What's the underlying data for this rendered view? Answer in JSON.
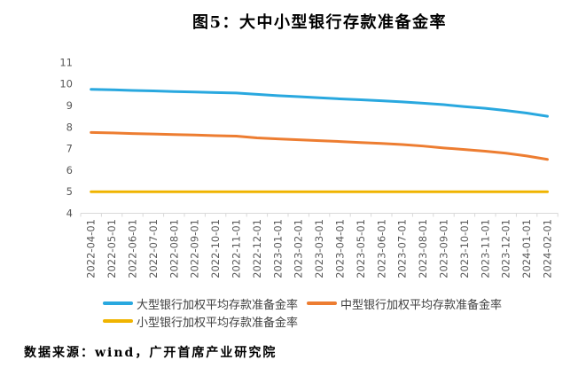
{
  "source": "数据来源：wind，广开首席产业研究院",
  "chart_data": {
    "type": "line",
    "title": "图5：大中小型银行存款准备金率",
    "xlabel": "",
    "ylabel": "",
    "ylim": [
      4,
      11
    ],
    "yticks": [
      11,
      10,
      9,
      8,
      7,
      6,
      5,
      4
    ],
    "grid": false,
    "legend_position": "bottom",
    "axis_color": "#d9d9d9",
    "tick_label_color": "#595959",
    "categories": [
      "2022-04-01",
      "2022-05-01",
      "2022-06-01",
      "2022-07-01",
      "2022-08-01",
      "2022-09-01",
      "2022-10-01",
      "2022-11-01",
      "2022-12-01",
      "2023-01-01",
      "2023-02-01",
      "2023-03-01",
      "2023-04-01",
      "2023-05-01",
      "2023-06-01",
      "2023-07-01",
      "2023-08-01",
      "2023-09-01",
      "2023-10-01",
      "2023-11-01",
      "2023-12-01",
      "2024-01-01",
      "2024-02-01"
    ],
    "series": [
      {
        "id": "large-banks",
        "name": "大型银行加权平均存款准备金率",
        "color": "#29A8DF",
        "values": [
          9.75,
          9.73,
          9.7,
          9.68,
          9.65,
          9.63,
          9.6,
          9.58,
          9.52,
          9.46,
          9.41,
          9.36,
          9.31,
          9.27,
          9.22,
          9.17,
          9.11,
          9.04,
          8.95,
          8.87,
          8.77,
          8.65,
          8.5
        ]
      },
      {
        "id": "medium-banks",
        "name": "中型银行加权平均存款准备金率",
        "color": "#ED7D31",
        "values": [
          7.75,
          7.73,
          7.7,
          7.68,
          7.65,
          7.63,
          7.6,
          7.58,
          7.5,
          7.45,
          7.41,
          7.37,
          7.33,
          7.28,
          7.24,
          7.19,
          7.12,
          7.03,
          6.96,
          6.88,
          6.79,
          6.66,
          6.5
        ]
      },
      {
        "id": "small-banks",
        "name": "小型银行加权平均存款准备金率",
        "color": "#F0B400",
        "values": [
          5.0,
          5.0,
          5.0,
          5.0,
          5.0,
          5.0,
          5.0,
          5.0,
          5.0,
          5.0,
          5.0,
          5.0,
          5.0,
          5.0,
          5.0,
          5.0,
          5.0,
          5.0,
          5.0,
          5.0,
          5.0,
          5.0,
          5.0
        ]
      }
    ]
  }
}
